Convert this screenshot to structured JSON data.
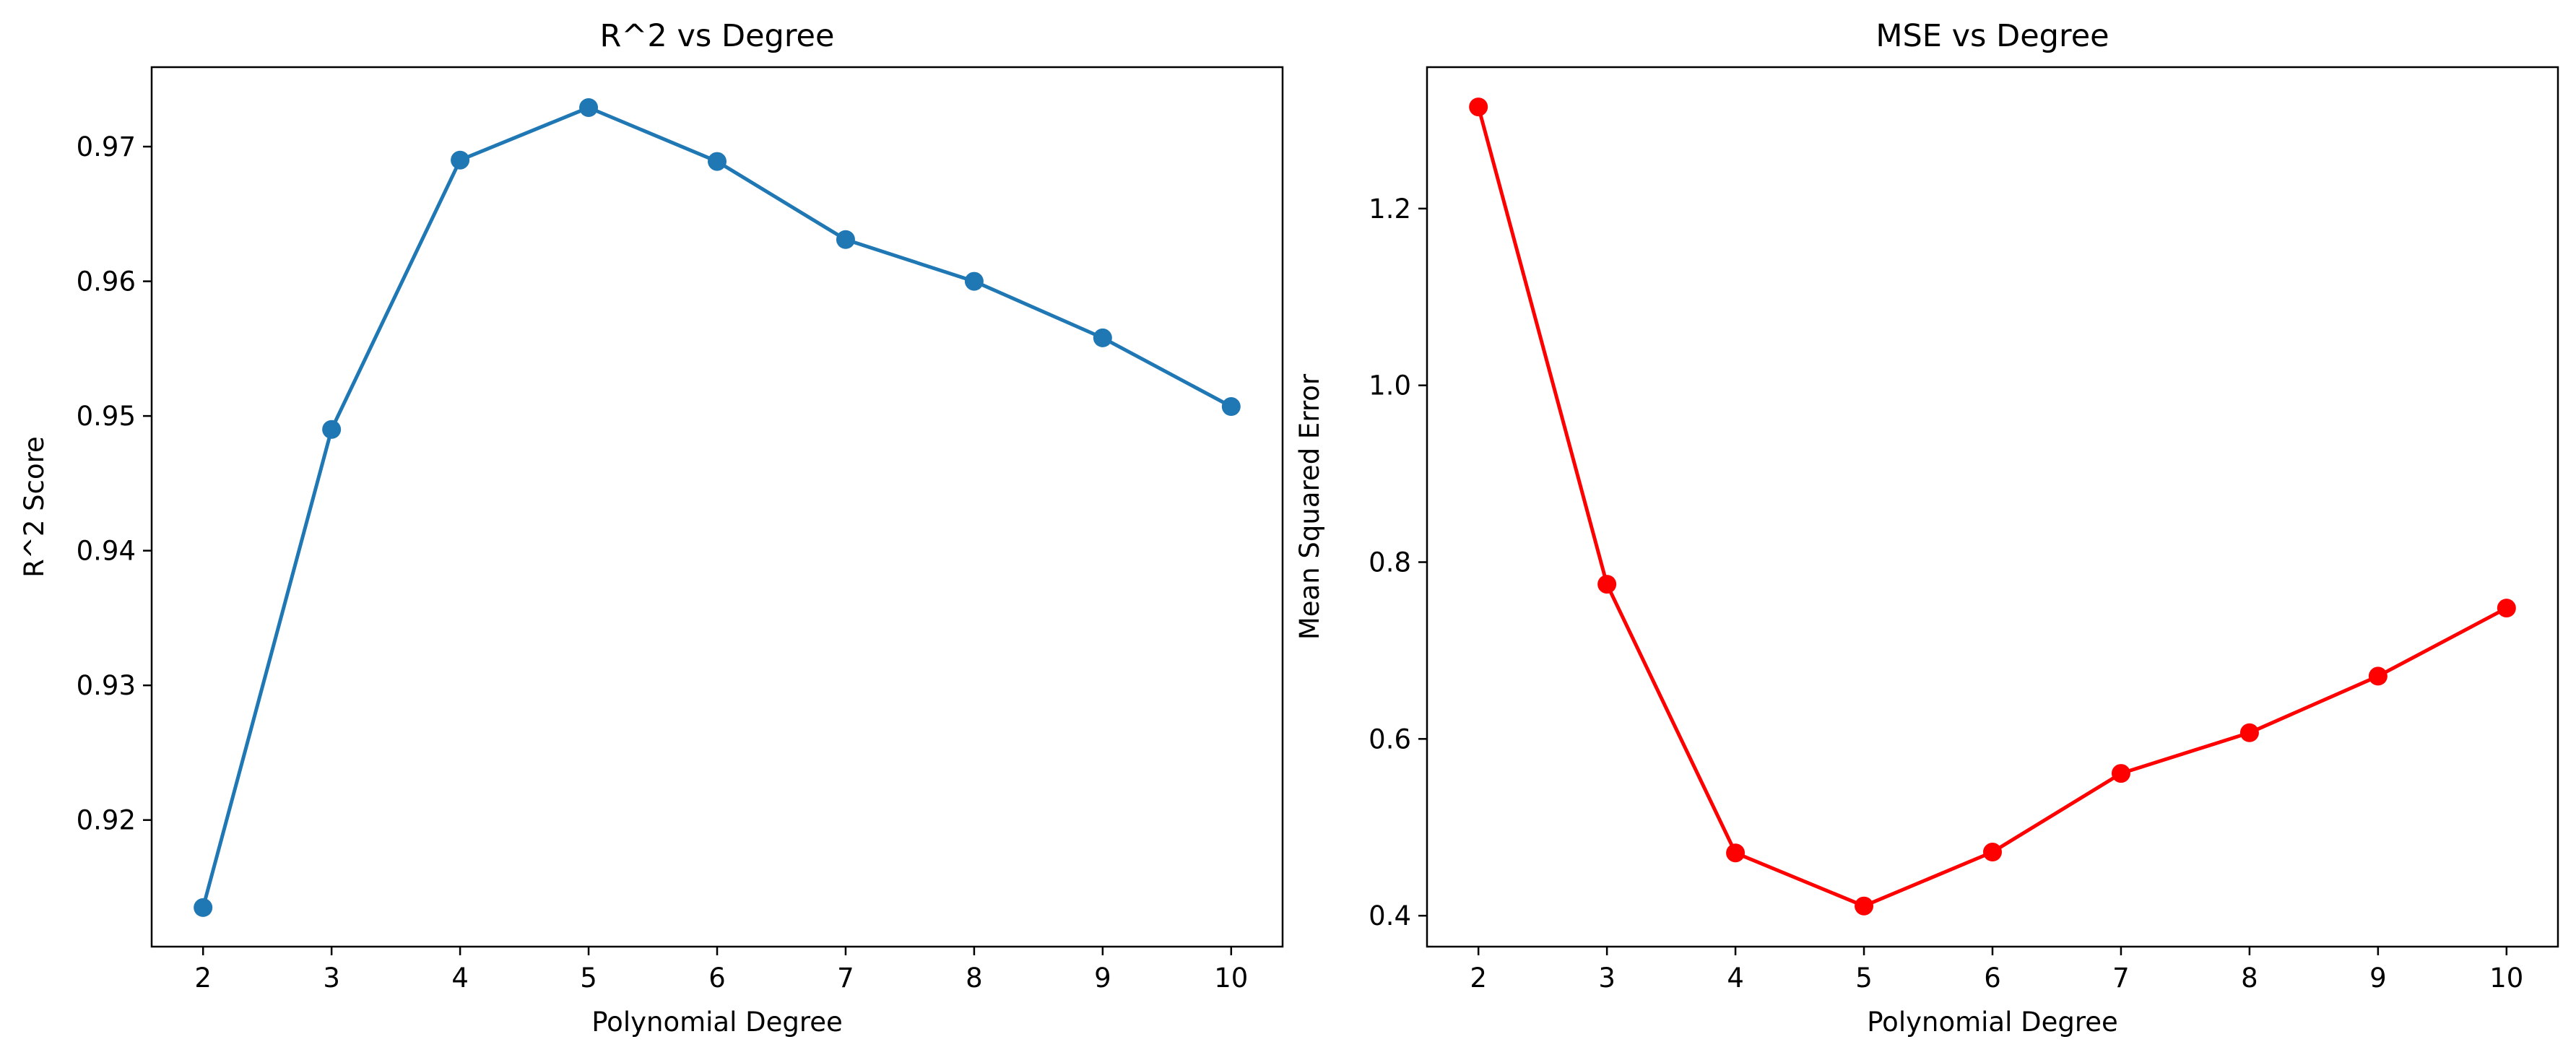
{
  "chart_data": [
    {
      "type": "line",
      "title": "R^2 vs Degree",
      "xlabel": "Polynomial Degree",
      "ylabel": "R^2 Score",
      "xlim": [
        1.6,
        10.4
      ],
      "ylim": [
        0.9106,
        0.9759
      ],
      "xticks": [
        2,
        3,
        4,
        5,
        6,
        7,
        8,
        9,
        10
      ],
      "xtick_labels": [
        "2",
        "3",
        "4",
        "5",
        "6",
        "7",
        "8",
        "9",
        "10"
      ],
      "yticks": [
        0.92,
        0.93,
        0.94,
        0.95,
        0.96,
        0.97
      ],
      "ytick_labels": [
        "0.92",
        "0.93",
        "0.94",
        "0.95",
        "0.96",
        "0.97"
      ],
      "grid": false,
      "series": [
        {
          "color": "#1f77b4",
          "marker": "circle",
          "x": [
            2,
            3,
            4,
            5,
            6,
            7,
            8,
            9,
            10
          ],
          "y": [
            0.9135,
            0.949,
            0.969,
            0.9729,
            0.9689,
            0.9631,
            0.96,
            0.9558,
            0.9507
          ]
        }
      ]
    },
    {
      "type": "line",
      "title": "MSE vs Degree",
      "xlabel": "Polynomial Degree",
      "ylabel": "Mean Squared Error",
      "xlim": [
        1.6,
        10.4
      ],
      "ylim": [
        0.365,
        1.36
      ],
      "xticks": [
        2,
        3,
        4,
        5,
        6,
        7,
        8,
        9,
        10
      ],
      "xtick_labels": [
        "2",
        "3",
        "4",
        "5",
        "6",
        "7",
        "8",
        "9",
        "10"
      ],
      "yticks": [
        0.4,
        0.6,
        0.8,
        1.0,
        1.2
      ],
      "ytick_labels": [
        "0.4",
        "0.6",
        "0.8",
        "1.0",
        "1.2"
      ],
      "grid": false,
      "series": [
        {
          "color": "#ff0000",
          "marker": "circle",
          "x": [
            2,
            3,
            4,
            5,
            6,
            7,
            8,
            9,
            10
          ],
          "y": [
            1.315,
            0.775,
            0.471,
            0.411,
            0.472,
            0.561,
            0.607,
            0.671,
            0.748
          ]
        }
      ]
    }
  ]
}
